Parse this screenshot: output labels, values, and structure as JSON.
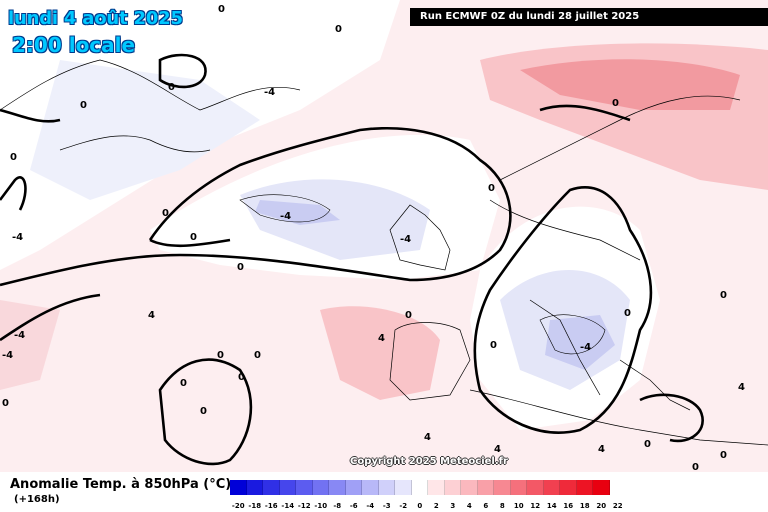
{
  "header": {
    "date": "lundi 4 août 2025",
    "time": "2:00 locale",
    "run": "Run ECMWF 0Z du lundi 28 juillet 2025"
  },
  "copyright": "Copyright 2025 Meteociel.fr",
  "footer": {
    "parameter": "Anomalie Temp. à 850hPa (°C)",
    "lead_time": "(+168h)"
  },
  "colors": {
    "ocean_neutral": "#ffffff",
    "cold_light": "#e6e8fa",
    "cold_medium": "#c9ccf2",
    "warm_light": "#fde5e7",
    "warm_medium": "#f9c4c8",
    "warm_strong": "#f29aa0",
    "contour": "#000000"
  },
  "legend": {
    "ticks": [
      "-20",
      "-18",
      "-16",
      "-14",
      "-12",
      "-10",
      "-8",
      "-6",
      "-4",
      "-3",
      "-2",
      "0",
      "2",
      "3",
      "4",
      "6",
      "8",
      "10",
      "12",
      "14",
      "16",
      "18",
      "20",
      "22"
    ],
    "colors": [
      "#0000d8",
      "#1a1ae0",
      "#3030e6",
      "#4646ec",
      "#5c5cf0",
      "#7272f2",
      "#8888f4",
      "#a0a0f6",
      "#b8b8f8",
      "#d0d0fa",
      "#e6e6fc",
      "#ffffff",
      "#ffe6e8",
      "#fdd0d4",
      "#fbb8be",
      "#f9a0a8",
      "#f78892",
      "#f5707c",
      "#f35866",
      "#f14050",
      "#ef2a3a",
      "#ed1424",
      "#e80010"
    ]
  },
  "contour_labels": [
    "0",
    "0",
    "0",
    "0",
    "0",
    "0",
    "0",
    "0",
    "0",
    "0",
    "0",
    "0",
    "0",
    "0",
    "0",
    "0",
    "0",
    "0",
    "0",
    "0",
    "0",
    "0",
    "0",
    "-4",
    "-4",
    "-4",
    "-4",
    "-4",
    "4",
    "4",
    "4",
    "4",
    "4",
    "4",
    "-4",
    "-4"
  ]
}
